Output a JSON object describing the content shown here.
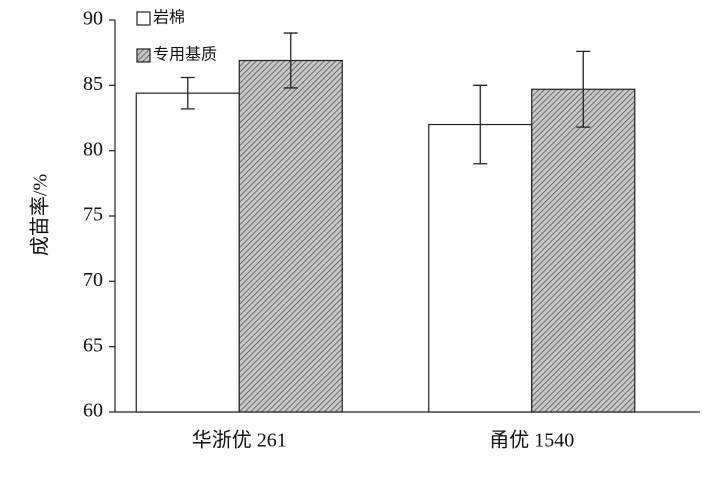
{
  "chart_data": {
    "type": "bar",
    "y_label": "成苗率/%",
    "categories": [
      "华浙优 261",
      "甬优 1540"
    ],
    "series": [
      {
        "name": "岩棉",
        "color": "#ffffff",
        "values": [
          84.4,
          82.0
        ],
        "errors": [
          1.2,
          3.0
        ]
      },
      {
        "name": "专用基质",
        "color": "#9a9a9a",
        "hatch": true,
        "values": [
          86.9,
          84.7
        ],
        "errors": [
          2.1,
          2.9
        ]
      }
    ],
    "ylim": [
      60,
      90
    ],
    "yticks": [
      60,
      65,
      70,
      75,
      80,
      85,
      90
    ],
    "grid": false,
    "legend": "top-left"
  }
}
